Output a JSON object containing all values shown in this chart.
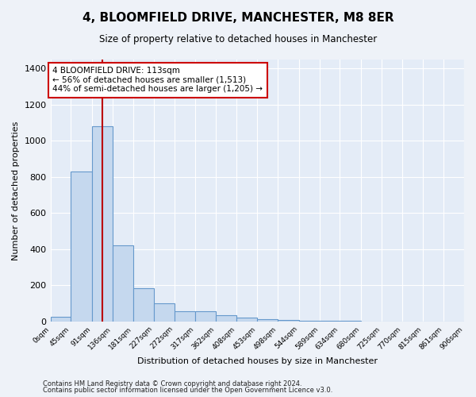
{
  "title": "4, BLOOMFIELD DRIVE, MANCHESTER, M8 8ER",
  "subtitle": "Size of property relative to detached houses in Manchester",
  "xlabel": "Distribution of detached houses by size in Manchester",
  "ylabel": "Number of detached properties",
  "bin_edges": [
    0,
    45,
    91,
    136,
    181,
    227,
    272,
    317,
    362,
    408,
    453,
    498,
    544,
    589,
    634,
    680,
    725,
    770,
    815,
    861,
    906
  ],
  "bar_heights": [
    25,
    830,
    1080,
    420,
    185,
    100,
    58,
    55,
    35,
    20,
    12,
    8,
    2,
    1,
    1,
    0,
    0,
    0,
    0,
    0
  ],
  "bar_color": "#c5d8ee",
  "bar_edgecolor": "#6699cc",
  "property_size": 113,
  "vline_color": "#bb0000",
  "annotation_text": "4 BLOOMFIELD DRIVE: 113sqm\n← 56% of detached houses are smaller (1,513)\n44% of semi-detached houses are larger (1,205) →",
  "annotation_bbox_facecolor": "#ffffff",
  "annotation_bbox_edgecolor": "#cc0000",
  "ylim": [
    0,
    1450
  ],
  "yticks": [
    0,
    200,
    400,
    600,
    800,
    1000,
    1200,
    1400
  ],
  "footer_line1": "Contains HM Land Registry data © Crown copyright and database right 2024.",
  "footer_line2": "Contains public sector information licensed under the Open Government Licence v3.0.",
  "background_color": "#eef2f8",
  "plot_bg_color": "#e4ecf7",
  "grid_color": "#ffffff"
}
